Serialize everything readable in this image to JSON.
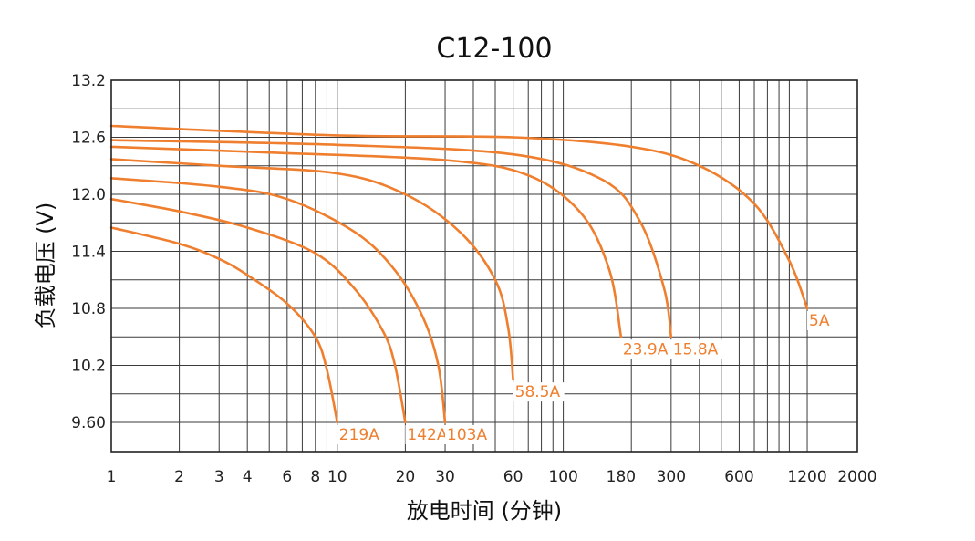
{
  "chart_data": {
    "type": "line",
    "title": "C12-100",
    "xlabel": "放电时间 (分钟)",
    "ylabel": "负载电压 (V)",
    "x_scale": "log",
    "xlim": [
      1,
      2000
    ],
    "ylim": [
      9.3,
      13.2
    ],
    "x_ticks": [
      1,
      2,
      3,
      4,
      6,
      8,
      10,
      20,
      30,
      60,
      100,
      180,
      300,
      600,
      1200,
      2000
    ],
    "x_tick_labels": [
      "1",
      "2",
      "3",
      "4",
      "6",
      "8",
      "10",
      "20",
      "30",
      "60",
      "100",
      "180",
      "300",
      "600",
      "1200",
      "2000"
    ],
    "y_ticks": [
      13.2,
      12.6,
      12.0,
      11.4,
      10.8,
      10.2,
      9.6
    ],
    "y_tick_labels": [
      "13.2",
      "12.6",
      "12.0",
      "11.4",
      "10.8",
      "10.2",
      "9.60"
    ],
    "grid": true,
    "series": [
      {
        "name": "219A",
        "x": [
          1,
          2,
          3,
          4,
          6,
          8,
          9,
          10
        ],
        "y": [
          11.65,
          11.48,
          11.32,
          11.15,
          10.85,
          10.5,
          10.15,
          9.6
        ]
      },
      {
        "name": "142A",
        "x": [
          1,
          2,
          4,
          8,
          12,
          16,
          18,
          20
        ],
        "y": [
          11.95,
          11.82,
          11.65,
          11.38,
          11.0,
          10.55,
          10.2,
          9.6
        ]
      },
      {
        "name": "103A",
        "x": [
          1,
          3,
          6,
          12,
          18,
          24,
          28,
          30
        ],
        "y": [
          12.17,
          12.08,
          11.95,
          11.6,
          11.2,
          10.7,
          10.2,
          9.6
        ]
      },
      {
        "name": "58.5A",
        "x": [
          1,
          3,
          10,
          20,
          35,
          50,
          57,
          60
        ],
        "y": [
          12.37,
          12.3,
          12.22,
          12.0,
          11.6,
          11.1,
          10.6,
          10.05
        ]
      },
      {
        "name": "23.9A",
        "x": [
          1,
          5,
          30,
          70,
          120,
          160,
          180
        ],
        "y": [
          12.5,
          12.44,
          12.36,
          12.2,
          11.8,
          11.2,
          10.5
        ]
      },
      {
        "name": "15.8A",
        "x": [
          1,
          10,
          60,
          150,
          220,
          280,
          300
        ],
        "y": [
          12.57,
          12.52,
          12.42,
          12.15,
          11.7,
          11.0,
          10.5
        ]
      },
      {
        "name": "5A",
        "x": [
          1,
          10,
          60,
          200,
          400,
          700,
          1000,
          1200
        ],
        "y": [
          12.72,
          12.62,
          12.6,
          12.5,
          12.3,
          11.9,
          11.3,
          10.8
        ]
      }
    ]
  }
}
